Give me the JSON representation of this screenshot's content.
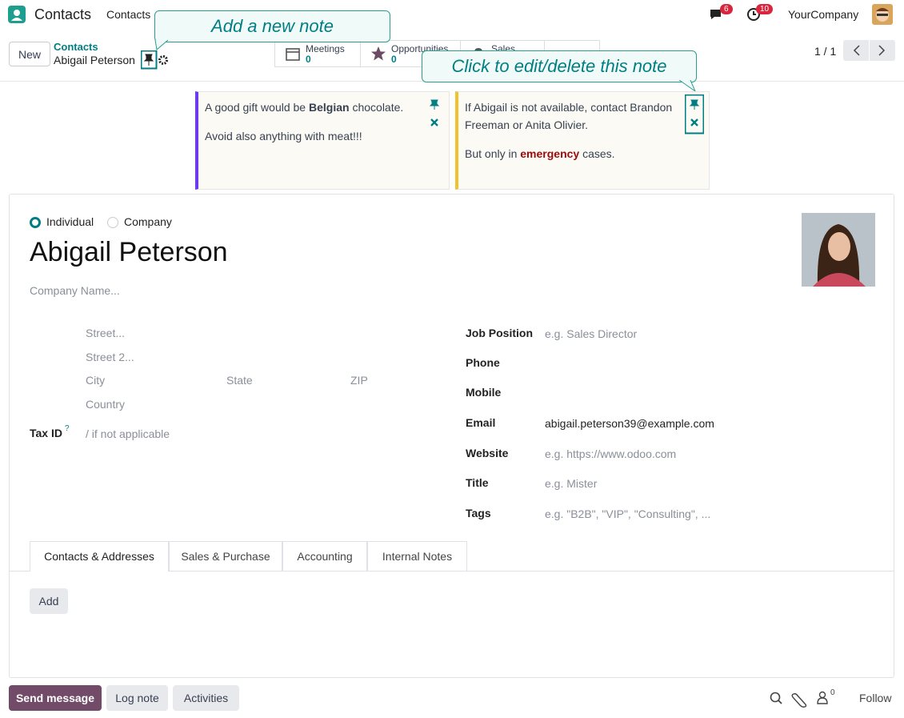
{
  "navbar": {
    "app": "Contacts",
    "menu": [
      "Contacts"
    ],
    "messages_badge": 6,
    "activities_badge": 10,
    "company": "YourCompany"
  },
  "control_panel": {
    "new_button": "New",
    "breadcrumb": {
      "parent": "Contacts",
      "current": "Abigail Peterson"
    },
    "smart_buttons": [
      {
        "label": "Meetings",
        "count": 0
      },
      {
        "label": "Opportunities",
        "count": 0
      },
      {
        "label": "Sales"
      }
    ],
    "pager": "1 / 1"
  },
  "callouts": [
    "Add a new note",
    "Click to edit/delete this note"
  ],
  "notes": [
    {
      "color": "#6d3af0",
      "paragraphs": [
        [
          {
            "text": "A good gift would be "
          },
          {
            "text": "Belgian",
            "bold": true
          },
          {
            "text": " chocolate."
          }
        ],
        [
          {
            "text": "Avoid also anything with meat!!!"
          }
        ]
      ]
    },
    {
      "color": "#f2c12e",
      "paragraphs": [
        [
          {
            "text": "If Abigail is not available, contact Brandon Freeman or Anita Olivier."
          }
        ],
        [
          {
            "text": "But only in "
          },
          {
            "text": "emergency",
            "bold": true,
            "color": "#9c0a0a"
          },
          {
            "text": " cases."
          }
        ]
      ]
    }
  ],
  "form": {
    "types": [
      "Individual",
      "Company"
    ],
    "selected_type": 0,
    "name": "Abigail Peterson",
    "company_placeholder": "Company Name...",
    "address": {
      "street": "Street...",
      "street2": "Street 2...",
      "city": "City",
      "state": "State",
      "zip": "ZIP",
      "country": "Country"
    },
    "tax_id": {
      "label": "Tax ID",
      "help": "?",
      "placeholder": "/ if not applicable"
    },
    "fields": [
      {
        "label": "Job Position",
        "placeholder": "e.g. Sales Director"
      },
      {
        "label": "Phone"
      },
      {
        "label": "Mobile"
      },
      {
        "label": "Email",
        "value": "abigail.peterson39@example.com"
      },
      {
        "label": "Website",
        "placeholder": "e.g. https://www.odoo.com"
      },
      {
        "label": "Title",
        "placeholder": "e.g. Mister"
      },
      {
        "label": "Tags",
        "placeholder": "e.g. \"B2B\", \"VIP\", \"Consulting\", ..."
      }
    ],
    "tabs": [
      "Contacts & Addresses",
      "Sales & Purchase",
      "Accounting",
      "Internal Notes"
    ],
    "active_tab": 0,
    "add_button": "Add"
  },
  "chatter": {
    "buttons": [
      "Send message",
      "Log note",
      "Activities"
    ],
    "followers": 0,
    "follow": "Follow"
  }
}
